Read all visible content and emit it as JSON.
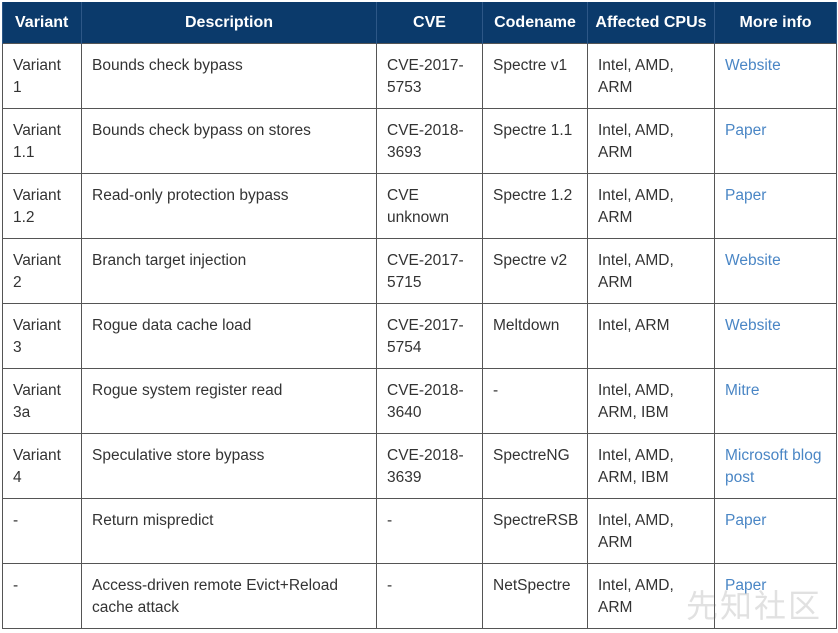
{
  "headers": [
    "Variant",
    "Description",
    "CVE",
    "Codename",
    "Affected CPUs",
    "More info"
  ],
  "rows": [
    {
      "variant": "Variant 1",
      "description": "Bounds check bypass",
      "cve": "CVE-2017-5753",
      "codename": "Spectre v1",
      "cpus": "Intel, AMD, ARM",
      "info": "Website"
    },
    {
      "variant": "Variant 1.1",
      "description": "Bounds check bypass on stores",
      "cve": "CVE-2018-3693",
      "codename": "Spectre 1.1",
      "cpus": "Intel, AMD, ARM",
      "info": "Paper"
    },
    {
      "variant": "Variant 1.2",
      "description": "Read-only protection bypass",
      "cve": "CVE unknown",
      "codename": "Spectre 1.2",
      "cpus": "Intel, AMD, ARM",
      "info": "Paper"
    },
    {
      "variant": "Variant 2",
      "description": "Branch target injection",
      "cve": "CVE-2017-5715",
      "codename": "Spectre v2",
      "cpus": "Intel, AMD, ARM",
      "info": "Website"
    },
    {
      "variant": "Variant 3",
      "description": "Rogue data cache load",
      "cve": "CVE-2017-5754",
      "codename": "Meltdown",
      "cpus": "Intel, ARM",
      "info": "Website"
    },
    {
      "variant": "Variant 3a",
      "description": "Rogue system register read",
      "cve": "CVE-2018-3640",
      "codename": "-",
      "cpus": "Intel, AMD, ARM, IBM",
      "info": "Mitre"
    },
    {
      "variant": "Variant 4",
      "description": "Speculative store bypass",
      "cve": "CVE-2018-3639",
      "codename": "SpectreNG",
      "cpus": "Intel, AMD, ARM, IBM",
      "info": "Microsoft blog post"
    },
    {
      "variant": "-",
      "description": "Return mispredict",
      "cve": "-",
      "codename": "SpectreRSB",
      "cpus": "Intel, AMD, ARM",
      "info": "Paper"
    },
    {
      "variant": "-",
      "description": "Access-driven remote Evict+Reload cache attack",
      "cve": "-",
      "codename": "NetSpectre",
      "cpus": "Intel, AMD, ARM",
      "info": "Paper"
    }
  ],
  "watermark": "先知社区",
  "colors": {
    "header_bg": "#0b3a6b",
    "link": "#4a86c5",
    "text": "#333333"
  }
}
